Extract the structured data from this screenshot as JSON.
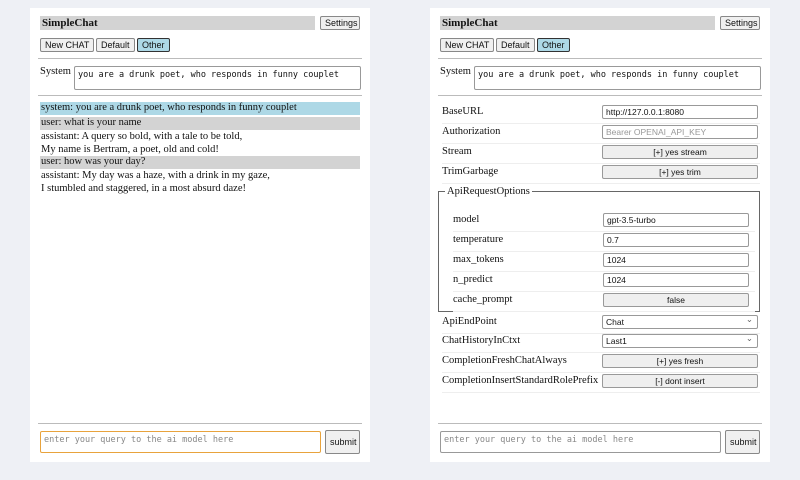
{
  "app": {
    "title": "SimpleChat",
    "settings_label": "Settings",
    "buttons": [
      "New CHAT",
      "Default",
      "Other"
    ],
    "system_label": "System",
    "system_value": "you are a drunk poet, who responds in funny couplet",
    "query_placeholder": "enter your query to the ai model here",
    "submit_label": "submit"
  },
  "chat": [
    {
      "role": "system",
      "text": "system: you are a drunk poet, who responds in funny couplet"
    },
    {
      "role": "user",
      "text": "user: what is your name"
    },
    {
      "role": "assistant",
      "text": "assistant: A query so bold, with a tale to be told,",
      "text2": "My name is Bertram, a poet, old and cold!"
    },
    {
      "role": "user",
      "text": "user: how was your day?"
    },
    {
      "role": "assistant",
      "text": "assistant: My day was a haze, with a drink in my gaze,",
      "text2": "I stumbled and staggered, in a most absurd daze!"
    }
  ],
  "settings": {
    "base_url": {
      "label": "BaseURL",
      "value": "http://127.0.0.1:8080"
    },
    "authorization": {
      "label": "Authorization",
      "placeholder": "Bearer OPENAI_API_KEY"
    },
    "stream": {
      "label": "Stream",
      "value": "[+] yes stream"
    },
    "trim": {
      "label": "TrimGarbage",
      "value": "[+] yes trim"
    },
    "api_options": {
      "legend": "ApiRequestOptions",
      "model": {
        "label": "model",
        "value": "gpt-3.5-turbo"
      },
      "temperature": {
        "label": "temperature",
        "value": "0.7"
      },
      "max_tokens": {
        "label": "max_tokens",
        "value": "1024"
      },
      "n_predict": {
        "label": "n_predict",
        "value": "1024"
      },
      "cache_prompt": {
        "label": "cache_prompt",
        "value": "false"
      }
    },
    "endpoint": {
      "label": "ApiEndPoint",
      "value": "Chat"
    },
    "history": {
      "label": "ChatHistoryInCtxt",
      "value": "Last1"
    },
    "fresh": {
      "label": "CompletionFreshChatAlways",
      "value": "[+] yes fresh"
    },
    "prefix": {
      "label": "CompletionInsertStandardRolePrefix",
      "value": "[-] dont insert"
    }
  },
  "colors": {
    "system_msg_bg": "#add8e6",
    "user_msg_bg": "#d3d3d3",
    "selected_button": "#add8e6",
    "focus_border": "#e8a33d"
  }
}
